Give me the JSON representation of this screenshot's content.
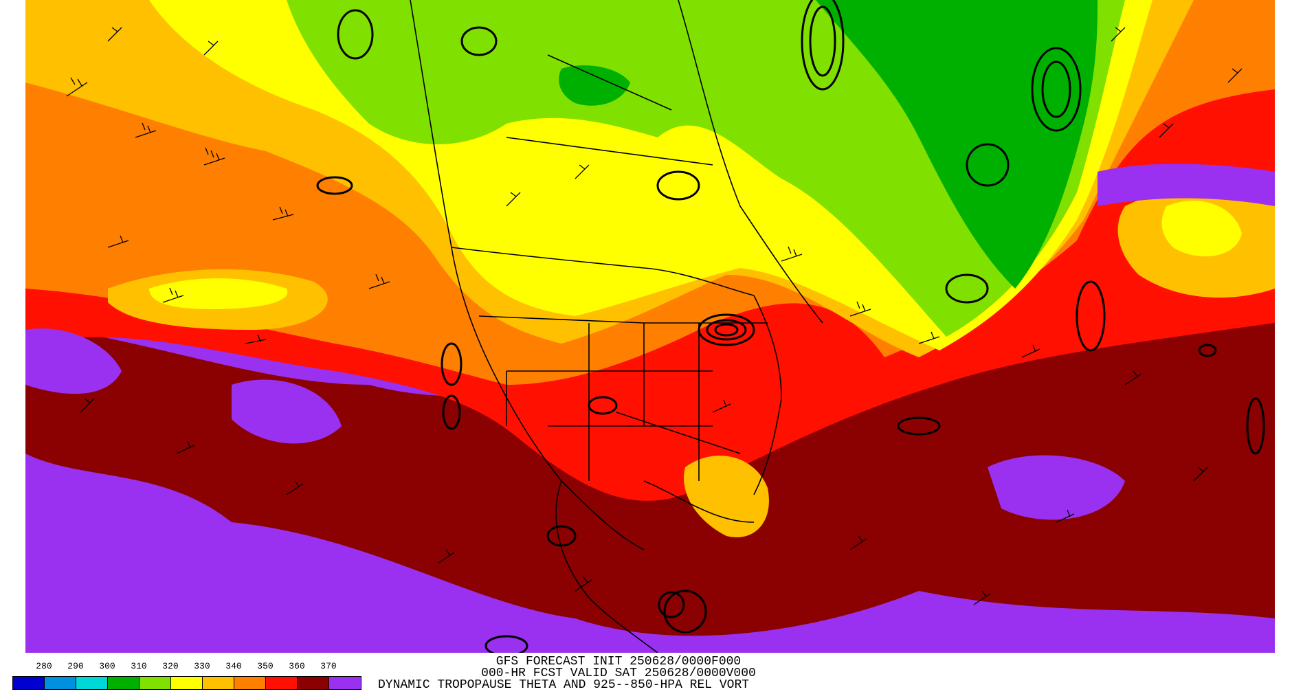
{
  "caption": {
    "line1": "GFS FORECAST INIT 250628/0000F000",
    "line2": "000-HR FCST VALID SAT 250628/0000V000",
    "line3": "DYNAMIC TROPOPAUSE THETA AND 925--850-HPA REL VORT"
  },
  "legend": {
    "ticks": [
      "280",
      "290",
      "300",
      "310",
      "320",
      "330",
      "340",
      "350",
      "360",
      "370"
    ],
    "colors": [
      "#0000d0",
      "#0090e0",
      "#00d8d8",
      "#00b000",
      "#80e000",
      "#ffff00",
      "#ffc000",
      "#ff8000",
      "#ff1000",
      "#8b0000",
      "#9a30f0"
    ]
  },
  "map": {
    "background_fill": "#8b0000",
    "region_colors": {
      "purple": "#9a30f0",
      "dark_red": "#8b0000",
      "red": "#ff1000",
      "orange": "#ff8000",
      "gold": "#ffc000",
      "yellow": "#ffff00",
      "light_green": "#80e000",
      "green": "#00b000"
    }
  }
}
